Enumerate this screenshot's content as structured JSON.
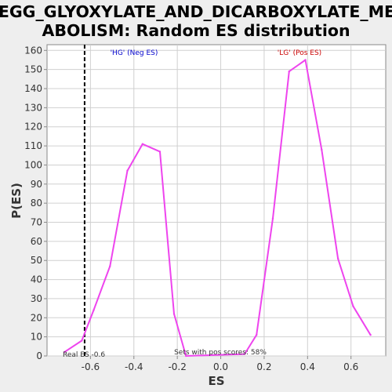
{
  "chart_data": {
    "type": "line",
    "title_line1": "KEGG_GLYOXYLATE_AND_DICARBOXYLATE_MET",
    "title_line2": "ABOLISM: Random ES distribution",
    "xlabel": "ES",
    "ylabel": "P(ES)",
    "xlim": [
      -0.8,
      0.76
    ],
    "ylim": [
      0,
      163
    ],
    "xticks": [
      "-0.6",
      "-0.4",
      "-0.2",
      "0.0",
      "0.2",
      "0.4",
      "0.6"
    ],
    "xtick_values": [
      -0.6,
      -0.4,
      -0.2,
      0.0,
      0.2,
      0.4,
      0.6
    ],
    "yticks": [
      "0",
      "10",
      "20",
      "30",
      "40",
      "50",
      "60",
      "70",
      "80",
      "90",
      "100",
      "110",
      "120",
      "130",
      "140",
      "150",
      "160"
    ],
    "ytick_values": [
      0,
      10,
      20,
      30,
      40,
      50,
      60,
      70,
      80,
      90,
      100,
      110,
      120,
      130,
      140,
      150,
      160
    ],
    "grid": true,
    "series": [
      {
        "color": "#ee44ee",
        "x": [
          -0.72,
          -0.64,
          -0.585,
          -0.51,
          -0.43,
          -0.36,
          -0.28,
          -0.215,
          -0.16,
          0.11,
          0.165,
          0.24,
          0.315,
          0.39,
          0.465,
          0.54,
          0.61,
          0.69
        ],
        "y": [
          2,
          8,
          24,
          47,
          97,
          111,
          107,
          22,
          0,
          1,
          11,
          72,
          149,
          155,
          108,
          51,
          26,
          11
        ]
      }
    ],
    "real_es": -0.6,
    "real_es_line_x": -0.627,
    "annotations": {
      "neg_label": "'HG' (Neg ES)",
      "neg_color": "#0000cc",
      "pos_label": "'LG' (Pos ES)",
      "pos_color": "#cc0000",
      "real_es_label": "Real ES -0.6",
      "pos_scores_label": "Sets with pos scores: 58%"
    }
  }
}
